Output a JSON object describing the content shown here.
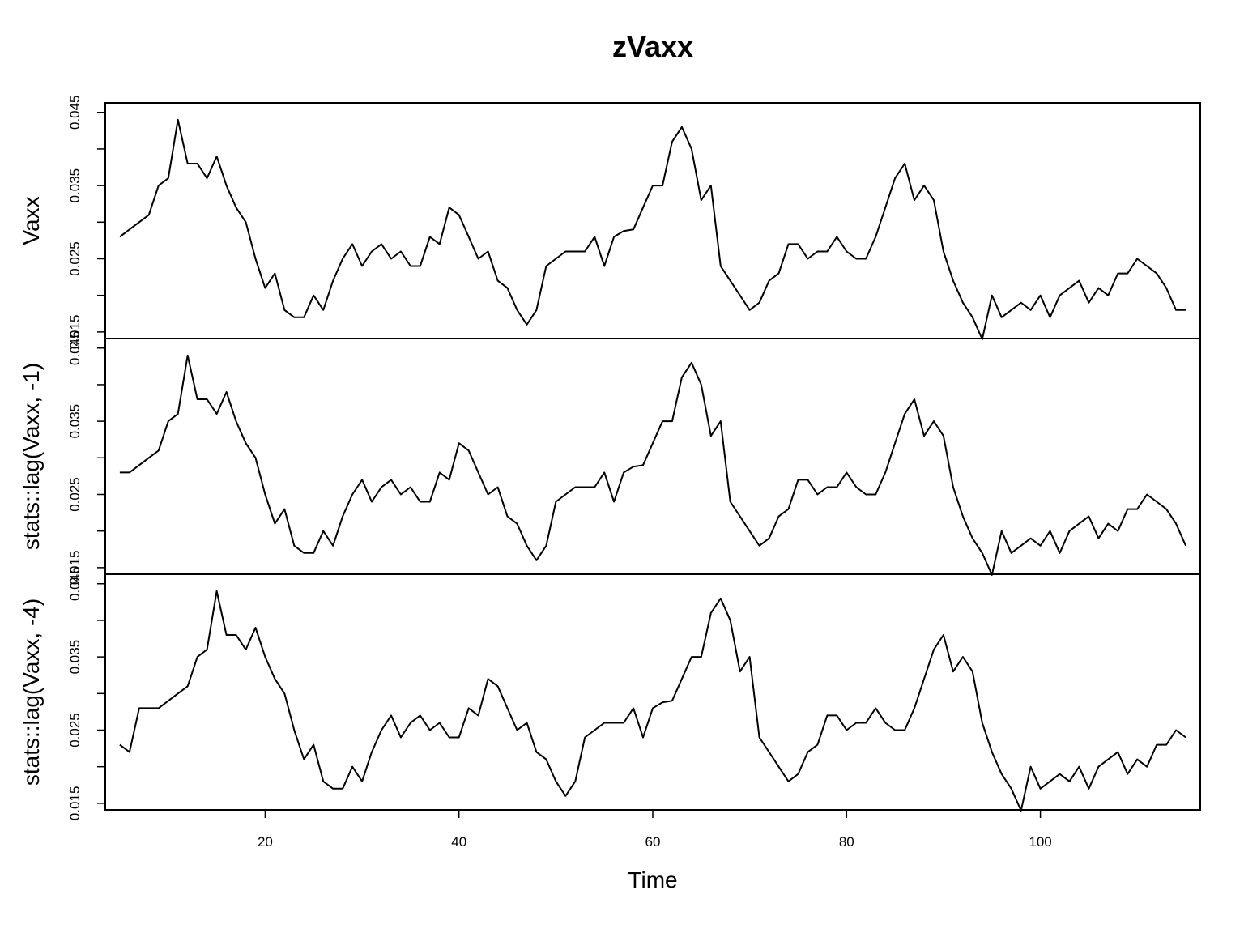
{
  "chart_data": {
    "type": "line",
    "title": "zVaxx",
    "xlabel": "Time",
    "xlim": [
      3.5,
      116.5
    ],
    "x_ticks": [
      20,
      40,
      60,
      80,
      100
    ],
    "x_start": 5,
    "layout": "stacked-panels",
    "panels": [
      {
        "ylabel": "Vaxx",
        "ylim": [
          0.0141,
          0.0463
        ],
        "y_ticks": [
          0.015,
          0.02,
          0.025,
          0.03,
          0.035,
          0.04,
          0.045
        ],
        "y_tick_labels": [
          "0.015",
          "",
          "0.025",
          "",
          "0.035",
          "",
          "0.045"
        ],
        "values": [
          0.028,
          0.029,
          0.03,
          0.031,
          0.035,
          0.036,
          0.044,
          0.038,
          0.038,
          0.036,
          0.039,
          0.035,
          0.032,
          0.03,
          0.025,
          0.021,
          0.023,
          0.018,
          0.017,
          0.017,
          0.02,
          0.018,
          0.022,
          0.025,
          0.027,
          0.024,
          0.026,
          0.027,
          0.025,
          0.026,
          0.024,
          0.024,
          0.028,
          0.027,
          0.032,
          0.031,
          0.028,
          0.025,
          0.026,
          0.022,
          0.021,
          0.018,
          0.016,
          0.018,
          0.024,
          0.025,
          0.026,
          0.026,
          0.026,
          0.028,
          0.024,
          0.028,
          0.0288,
          0.029,
          0.032,
          0.035,
          0.035,
          0.041,
          0.043,
          0.04,
          0.033,
          0.035,
          0.024,
          0.022,
          0.02,
          0.018,
          0.019,
          0.022,
          0.023,
          0.027,
          0.027,
          0.025,
          0.026,
          0.026,
          0.028,
          0.026,
          0.025,
          0.025,
          0.028,
          0.032,
          0.036,
          0.038,
          0.033,
          0.035,
          0.033,
          0.026,
          0.022,
          0.019,
          0.017,
          0.014,
          0.02,
          0.017,
          0.018,
          0.019,
          0.018,
          0.02,
          0.017,
          0.02,
          0.021,
          0.022,
          0.019,
          0.021,
          0.02,
          0.023,
          0.023,
          0.025,
          0.024,
          0.023,
          0.021,
          0.018,
          0.018
        ]
      },
      {
        "ylabel": "stats::lag(Vaxx, -1)",
        "ylim": [
          0.0141,
          0.0463
        ],
        "y_ticks": [
          0.015,
          0.02,
          0.025,
          0.03,
          0.035,
          0.04,
          0.045
        ],
        "y_tick_labels": [
          "0.015",
          "",
          "0.025",
          "",
          "0.035",
          "",
          "0.045"
        ],
        "values": [
          0.028,
          0.028,
          0.029,
          0.03,
          0.031,
          0.035,
          0.036,
          0.044,
          0.038,
          0.038,
          0.036,
          0.039,
          0.035,
          0.032,
          0.03,
          0.025,
          0.021,
          0.023,
          0.018,
          0.017,
          0.017,
          0.02,
          0.018,
          0.022,
          0.025,
          0.027,
          0.024,
          0.026,
          0.027,
          0.025,
          0.026,
          0.024,
          0.024,
          0.028,
          0.027,
          0.032,
          0.031,
          0.028,
          0.025,
          0.026,
          0.022,
          0.021,
          0.018,
          0.016,
          0.018,
          0.024,
          0.025,
          0.026,
          0.026,
          0.026,
          0.028,
          0.024,
          0.028,
          0.0288,
          0.029,
          0.032,
          0.035,
          0.035,
          0.041,
          0.043,
          0.04,
          0.033,
          0.035,
          0.024,
          0.022,
          0.02,
          0.018,
          0.019,
          0.022,
          0.023,
          0.027,
          0.027,
          0.025,
          0.026,
          0.026,
          0.028,
          0.026,
          0.025,
          0.025,
          0.028,
          0.032,
          0.036,
          0.038,
          0.033,
          0.035,
          0.033,
          0.026,
          0.022,
          0.019,
          0.017,
          0.014,
          0.02,
          0.017,
          0.018,
          0.019,
          0.018,
          0.02,
          0.017,
          0.02,
          0.021,
          0.022,
          0.019,
          0.021,
          0.02,
          0.023,
          0.023,
          0.025,
          0.024,
          0.023,
          0.021,
          0.018
        ]
      },
      {
        "ylabel": "stats::lag(Vaxx, -4)",
        "ylim": [
          0.0141,
          0.0463
        ],
        "y_ticks": [
          0.015,
          0.02,
          0.025,
          0.03,
          0.035,
          0.04,
          0.045
        ],
        "y_tick_labels": [
          "0.015",
          "",
          "0.025",
          "",
          "0.035",
          "",
          "0.045"
        ],
        "values": [
          0.023,
          0.022,
          0.028,
          0.028,
          0.028,
          0.029,
          0.03,
          0.031,
          0.035,
          0.036,
          0.044,
          0.038,
          0.038,
          0.036,
          0.039,
          0.035,
          0.032,
          0.03,
          0.025,
          0.021,
          0.023,
          0.018,
          0.017,
          0.017,
          0.02,
          0.018,
          0.022,
          0.025,
          0.027,
          0.024,
          0.026,
          0.027,
          0.025,
          0.026,
          0.024,
          0.024,
          0.028,
          0.027,
          0.032,
          0.031,
          0.028,
          0.025,
          0.026,
          0.022,
          0.021,
          0.018,
          0.016,
          0.018,
          0.024,
          0.025,
          0.026,
          0.026,
          0.026,
          0.028,
          0.024,
          0.028,
          0.0288,
          0.029,
          0.032,
          0.035,
          0.035,
          0.041,
          0.043,
          0.04,
          0.033,
          0.035,
          0.024,
          0.022,
          0.02,
          0.018,
          0.019,
          0.022,
          0.023,
          0.027,
          0.027,
          0.025,
          0.026,
          0.026,
          0.028,
          0.026,
          0.025,
          0.025,
          0.028,
          0.032,
          0.036,
          0.038,
          0.033,
          0.035,
          0.033,
          0.026,
          0.022,
          0.019,
          0.017,
          0.014,
          0.02,
          0.017,
          0.018,
          0.019,
          0.018,
          0.02,
          0.017,
          0.02,
          0.021,
          0.022,
          0.019,
          0.021,
          0.02,
          0.023,
          0.023,
          0.025,
          0.024
        ]
      }
    ]
  }
}
